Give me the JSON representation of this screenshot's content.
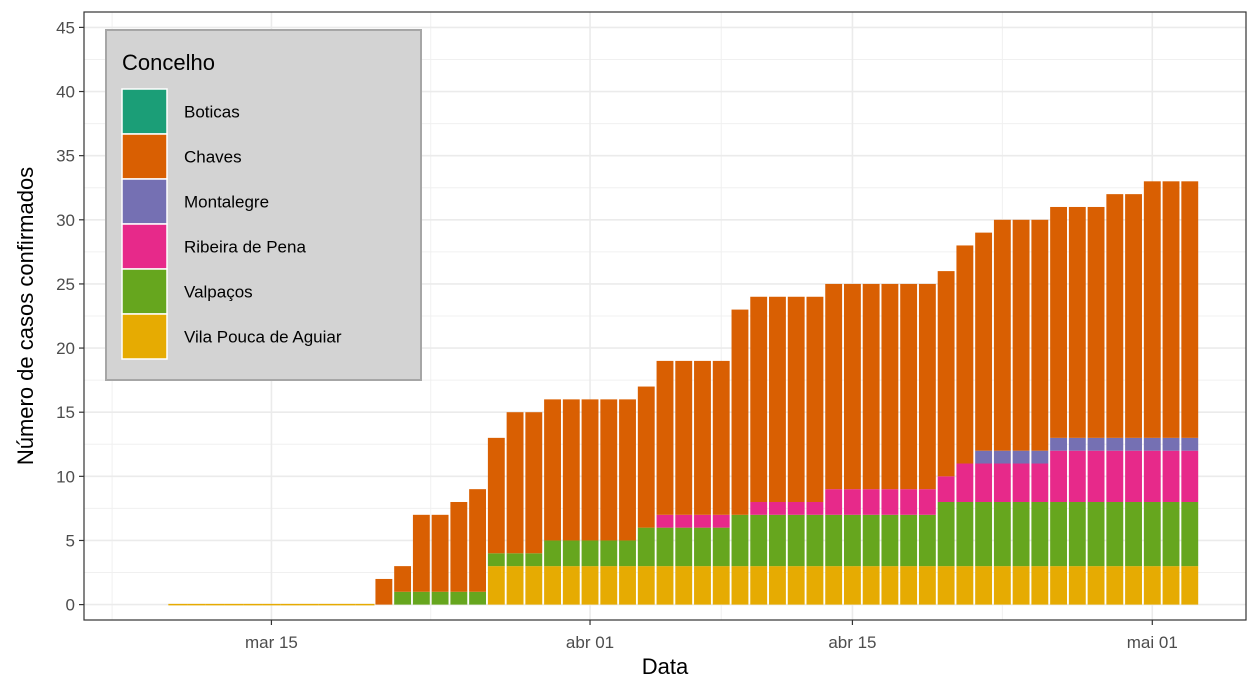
{
  "chart_data": {
    "type": "bar",
    "stacked": true,
    "xlabel": "Data",
    "ylabel": "Número de casos confirmados",
    "ylim": [
      0,
      45
    ],
    "yticks": [
      0,
      5,
      10,
      15,
      20,
      25,
      30,
      35,
      40,
      45
    ],
    "x_tick_labels": [
      {
        "label": "mar 15",
        "date": "2020-03-15"
      },
      {
        "label": "abr 01",
        "date": "2020-04-01"
      },
      {
        "label": "abr 15",
        "date": "2020-04-15"
      },
      {
        "label": "mai 01",
        "date": "2020-05-01"
      }
    ],
    "x_range": [
      "2020-03-05",
      "2020-05-06"
    ],
    "grid": true,
    "legend": {
      "title": "Concelho",
      "position": "top-left"
    },
    "dates": [
      "2020-03-10",
      "2020-03-11",
      "2020-03-12",
      "2020-03-13",
      "2020-03-14",
      "2020-03-15",
      "2020-03-16",
      "2020-03-17",
      "2020-03-18",
      "2020-03-19",
      "2020-03-20",
      "2020-03-21",
      "2020-03-22",
      "2020-03-23",
      "2020-03-24",
      "2020-03-25",
      "2020-03-26",
      "2020-03-27",
      "2020-03-28",
      "2020-03-29",
      "2020-03-30",
      "2020-03-31",
      "2020-04-01",
      "2020-04-02",
      "2020-04-03",
      "2020-04-04",
      "2020-04-05",
      "2020-04-06",
      "2020-04-07",
      "2020-04-08",
      "2020-04-09",
      "2020-04-10",
      "2020-04-11",
      "2020-04-12",
      "2020-04-13",
      "2020-04-14",
      "2020-04-15",
      "2020-04-16",
      "2020-04-17",
      "2020-04-18",
      "2020-04-19",
      "2020-04-20",
      "2020-04-21",
      "2020-04-22",
      "2020-04-23",
      "2020-04-24",
      "2020-04-25",
      "2020-04-26",
      "2020-04-27",
      "2020-04-28",
      "2020-04-29",
      "2020-04-30",
      "2020-05-01",
      "2020-05-02",
      "2020-05-03"
    ],
    "series": [
      {
        "name": "Vila Pouca de Aguiar",
        "color": "#E6AB02",
        "values": [
          0,
          0,
          0,
          0,
          0,
          0,
          0,
          0,
          0,
          0,
          0,
          0,
          0,
          0,
          0,
          0,
          0,
          3,
          3,
          3,
          3,
          3,
          3,
          3,
          3,
          3,
          3,
          3,
          3,
          3,
          3,
          3,
          3,
          3,
          3,
          3,
          3,
          3,
          3,
          3,
          3,
          3,
          3,
          3,
          3,
          3,
          3,
          3,
          3,
          3,
          3,
          3,
          3,
          3,
          3
        ]
      },
      {
        "name": "Valpaços",
        "color": "#66A61E",
        "values": [
          0,
          0,
          0,
          0,
          0,
          0,
          0,
          0,
          0,
          0,
          0,
          0,
          1,
          1,
          1,
          1,
          1,
          1,
          1,
          1,
          2,
          2,
          2,
          2,
          2,
          3,
          3,
          3,
          3,
          3,
          4,
          4,
          4,
          4,
          4,
          4,
          4,
          4,
          4,
          4,
          4,
          5,
          5,
          5,
          5,
          5,
          5,
          5,
          5,
          5,
          5,
          5,
          5,
          5,
          5
        ]
      },
      {
        "name": "Ribeira de Pena",
        "color": "#E7298A",
        "values": [
          0,
          0,
          0,
          0,
          0,
          0,
          0,
          0,
          0,
          0,
          0,
          0,
          0,
          0,
          0,
          0,
          0,
          0,
          0,
          0,
          0,
          0,
          0,
          0,
          0,
          0,
          1,
          1,
          1,
          1,
          0,
          1,
          1,
          1,
          1,
          2,
          2,
          2,
          2,
          2,
          2,
          2,
          3,
          3,
          3,
          3,
          3,
          4,
          4,
          4,
          4,
          4,
          4,
          4,
          4
        ]
      },
      {
        "name": "Montalegre",
        "color": "#7570B3",
        "values": [
          0,
          0,
          0,
          0,
          0,
          0,
          0,
          0,
          0,
          0,
          0,
          0,
          0,
          0,
          0,
          0,
          0,
          0,
          0,
          0,
          0,
          0,
          0,
          0,
          0,
          0,
          0,
          0,
          0,
          0,
          0,
          0,
          0,
          0,
          0,
          0,
          0,
          0,
          0,
          0,
          0,
          0,
          0,
          1,
          1,
          1,
          1,
          1,
          1,
          1,
          1,
          1,
          1,
          1,
          1
        ]
      },
      {
        "name": "Chaves",
        "color": "#D95F02",
        "values": [
          0,
          0,
          0,
          0,
          0,
          0,
          0,
          0,
          0,
          0,
          0,
          2,
          2,
          6,
          6,
          7,
          8,
          9,
          11,
          11,
          11,
          11,
          11,
          11,
          11,
          11,
          12,
          12,
          12,
          12,
          16,
          16,
          16,
          16,
          16,
          16,
          16,
          16,
          16,
          16,
          16,
          16,
          17,
          17,
          18,
          18,
          18,
          18,
          18,
          18,
          19,
          19,
          20,
          20,
          20
        ]
      },
      {
        "name": "Boticas",
        "color": "#1B9E77",
        "values": [
          0,
          0,
          0,
          0,
          0,
          0,
          0,
          0,
          0,
          0,
          0,
          0,
          0,
          0,
          0,
          0,
          0,
          0,
          0,
          0,
          0,
          0,
          0,
          0,
          0,
          0,
          0,
          0,
          0,
          0,
          0,
          0,
          0,
          0,
          0,
          0,
          0,
          0,
          0,
          0,
          0,
          0,
          0,
          0,
          0,
          0,
          0,
          0,
          0,
          0,
          0,
          0,
          0,
          0,
          0
        ]
      }
    ]
  }
}
